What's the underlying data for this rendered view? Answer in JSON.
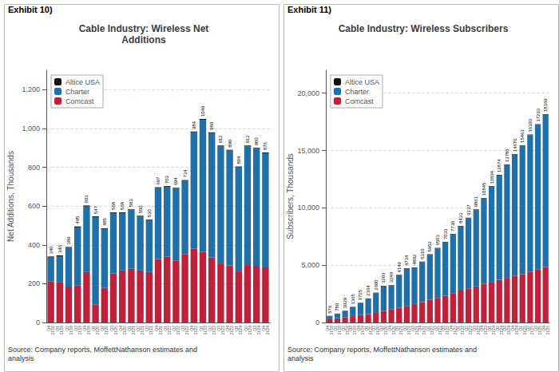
{
  "chart_data": [
    {
      "type": "bar",
      "stacked": true,
      "title": "Cable Industry: Wireless Net\nAdditions",
      "ylabel": "Net Additions, Thousands",
      "annotations": [
        "Exhibit 10)",
        "Source: Company reports, MoffettNathanson estimates and\nanalysis"
      ],
      "categories": [
        "Q4\n2018",
        "Q1\n2019",
        "Q2\n2019",
        "Q3\n2019",
        "Q4\n2019",
        "Q1\n2020",
        "Q2\n2020",
        "Q3\n2020",
        "Q4\n2020",
        "Q1\n2021",
        "Q2\n2021",
        "Q3\n2021",
        "Q4\n2021",
        "Q1\n2022",
        "Q2\n2022",
        "Q3\n2022",
        "Q4\n2022",
        "Q1\n2023",
        "Q2\n2023",
        "Q3\n2023",
        "Q4\n2023",
        "Q1\n2024",
        "Q2\n2024",
        "Q3\n2024",
        "Q4\n2024"
      ],
      "series": [
        {
          "name": "Comcast",
          "color": "#c0213a",
          "values": [
            213,
            209,
            185,
            190,
            260,
            93,
            178,
            252,
            268,
            277,
            268,
            260,
            327,
            338,
            320,
            353,
            381,
            364,
            335,
            304,
            294,
            263,
            296,
            292,
            284
          ]
        },
        {
          "name": "Charter",
          "color": "#1f6fa8",
          "values": [
            122,
            132,
            200,
            300,
            338,
            450,
            303,
            312,
            296,
            302,
            278,
            266,
            366,
            360,
            370,
            377,
            599,
            681,
            641,
            604,
            592,
            537,
            612,
            604,
            588
          ]
        },
        {
          "name": "Altice USA",
          "color": "#111111",
          "values": [
            5,
            5,
            4,
            5,
            5,
            4,
            4,
            4,
            4,
            4,
            4,
            4,
            4,
            5,
            4,
            4,
            4,
            4,
            4,
            4,
            4,
            4,
            4,
            4,
            4
          ]
        }
      ],
      "totals": [
        340,
        346,
        389,
        495,
        603,
        547,
        485,
        568,
        568,
        583,
        550,
        530,
        697,
        703,
        694,
        734,
        984,
        1049,
        980,
        912,
        890,
        804,
        912,
        900,
        876
      ],
      "ylim": [
        0,
        1300
      ],
      "yticks": [
        0,
        200,
        400,
        600,
        800,
        {
          "value": 1000,
          "label": "1,000"
        },
        {
          "value": 1200,
          "label": "1,200"
        }
      ],
      "grid": true,
      "legend": "upper left"
    },
    {
      "type": "bar",
      "stacked": true,
      "title": "Cable Industry: Wireless Subscribers",
      "ylabel": "Subscribers, Thousands",
      "annotations": [
        "Exhibit 11)",
        "Source: Company reports, MoffettNathanson estimates and\nanalysis"
      ],
      "categories": [
        "Q4\n2018",
        "Q1\n2019",
        "Q2\n2019",
        "Q3\n2019",
        "Q4\n2019",
        "Q1\n2020",
        "Q2\n2020",
        "Q3\n2020",
        "Q4\n2020",
        "Q1\n2021",
        "Q2\n2021",
        "Q3\n2021",
        "Q4\n2021",
        "Q1\n2022",
        "Q2\n2022",
        "Q3\n2022",
        "Q4\n2022",
        "Q1\n2023",
        "Q2\n2023",
        "Q3\n2023",
        "Q4\n2023",
        "Q1\n2024",
        "Q2\n2024",
        "Q3\n2024",
        "Q4\n2024",
        "Q1\n2025",
        "Q2\n2025",
        "Q3\n2025",
        "Q4\n2025"
      ],
      "series": [
        {
          "name": "Comcast",
          "color": "#c0213a",
          "values": [
            283,
            373,
            463,
            554,
            651,
            721,
            838,
            1003,
            1133,
            1297,
            1449,
            1609,
            1784,
            1973,
            2140,
            2327,
            2558,
            2787,
            2975,
            3148,
            3363,
            3541,
            3720,
            3884,
            4053,
            4222,
            4422,
            4621,
            4840
          ]
        },
        {
          "name": "Charter",
          "color": "#1f6fa8",
          "values": [
            272,
            382,
            538,
            779,
            1028,
            1344,
            1720,
            2155,
            2071,
            2806,
            3238,
            3145,
            3478,
            3931,
            4314,
            4657,
            5123,
            5597,
            6112,
            6663,
            7432,
            8303,
            9104,
            9852,
            10573,
            11189,
            11921,
            12622,
            13279
          ]
        },
        {
          "name": "Altice USA",
          "color": "#111111",
          "values": [
            21,
            25,
            28,
            32,
            36,
            39,
            42,
            45,
            45,
            46,
            47,
            48,
            48,
            48,
            49,
            49,
            49,
            49,
            50,
            50,
            50,
            50,
            50,
            50,
            50,
            50,
            50,
            50,
            50
          ]
        }
      ],
      "totals": [
        576,
        780,
        1029,
        1365,
        1715,
        2104,
        2600,
        3203,
        3249,
        4149,
        4734,
        4802,
        5310,
        5952,
        6503,
        7033,
        7730,
        8433,
        9137,
        9861,
        10845,
        11894,
        12874,
        13786,
        14676,
        15461,
        16393,
        17293,
        18169
      ],
      "ylim": [
        0,
        22000
      ],
      "yticks": [
        0,
        {
          "value": 5000,
          "label": "5,000"
        },
        {
          "value": 10000,
          "label": "10,000"
        },
        {
          "value": 15000,
          "label": "15,000"
        },
        {
          "value": 20000,
          "label": "20,000"
        }
      ],
      "grid": true,
      "legend": "upper left"
    }
  ]
}
